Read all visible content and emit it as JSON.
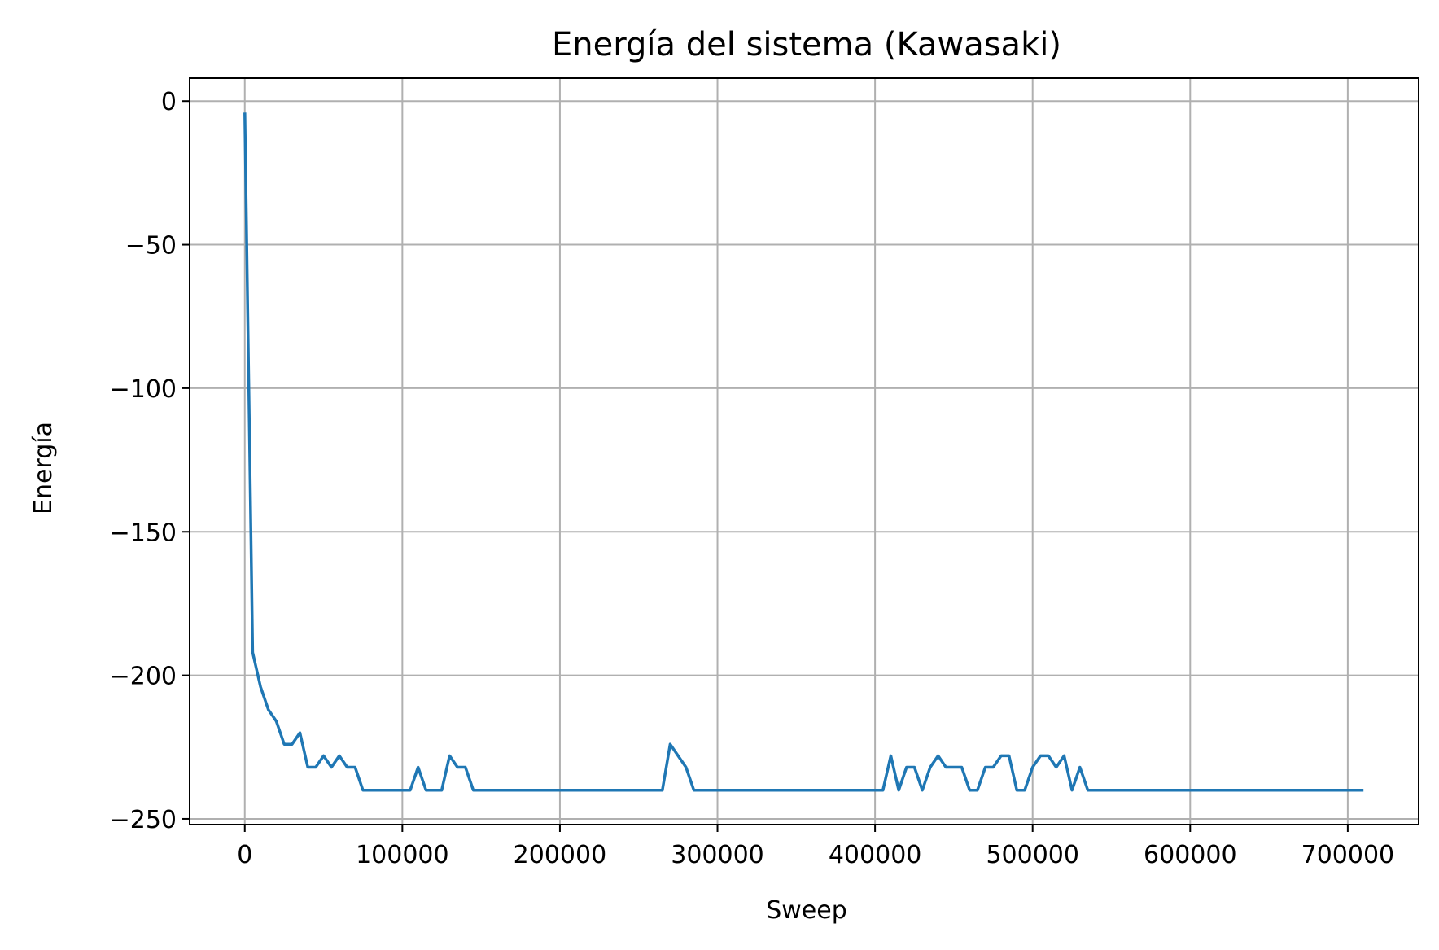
{
  "chart_data": {
    "type": "line",
    "title": "Energía del sistema (Kawasaki)",
    "xlabel": "Sweep",
    "ylabel": "Energía",
    "xlim": [
      -35000,
      745000
    ],
    "ylim": [
      -252,
      8
    ],
    "xticks": [
      0,
      100000,
      200000,
      300000,
      400000,
      500000,
      600000,
      700000
    ],
    "yticks": [
      0,
      -50,
      -100,
      -150,
      -200,
      -250
    ],
    "xtick_labels": [
      "0",
      "100000",
      "200000",
      "300000",
      "400000",
      "500000",
      "600000",
      "700000"
    ],
    "ytick_labels": [
      "0",
      "−50",
      "−100",
      "−150",
      "−200",
      "−250"
    ],
    "grid": true,
    "series_color": "#1f77b4",
    "x": [
      0,
      5000,
      10000,
      15000,
      20000,
      25000,
      30000,
      35000,
      40000,
      45000,
      50000,
      55000,
      60000,
      65000,
      70000,
      75000,
      80000,
      85000,
      90000,
      95000,
      100000,
      105000,
      110000,
      115000,
      120000,
      125000,
      130000,
      135000,
      140000,
      145000,
      150000,
      265000,
      270000,
      275000,
      280000,
      285000,
      290000,
      405000,
      410000,
      415000,
      420000,
      425000,
      430000,
      435000,
      440000,
      445000,
      450000,
      455000,
      460000,
      465000,
      470000,
      475000,
      480000,
      485000,
      490000,
      495000,
      500000,
      505000,
      510000,
      515000,
      520000,
      525000,
      530000,
      535000,
      540000,
      710000
    ],
    "y": [
      -4,
      -192,
      -204,
      -212,
      -216,
      -224,
      -224,
      -220,
      -232,
      -232,
      -228,
      -232,
      -228,
      -232,
      -232,
      -240,
      -240,
      -240,
      -240,
      -240,
      -240,
      -240,
      -232,
      -240,
      -240,
      -240,
      -228,
      -232,
      -232,
      -240,
      -240,
      -240,
      -224,
      -228,
      -232,
      -240,
      -240,
      -240,
      -228,
      -240,
      -232,
      -232,
      -240,
      -232,
      -228,
      -232,
      -232,
      -232,
      -240,
      -240,
      -232,
      -232,
      -228,
      -228,
      -240,
      -240,
      -232,
      -228,
      -228,
      -232,
      -228,
      -240,
      -232,
      -240,
      -240,
      -240
    ]
  }
}
